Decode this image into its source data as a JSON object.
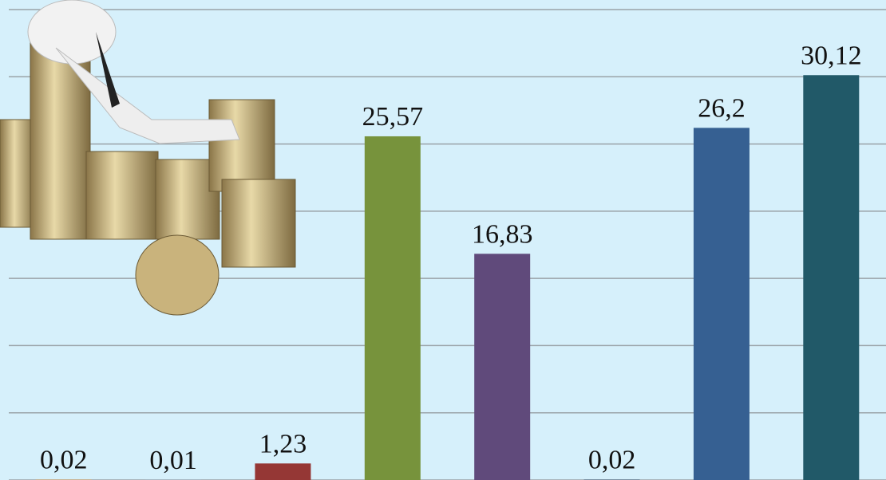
{
  "chart_data": {
    "type": "bar",
    "values": [
      0.02,
      0.01,
      1.23,
      25.57,
      16.83,
      0.02,
      26.2,
      30.12
    ],
    "value_labels": [
      "0,02",
      "0,01",
      "1,23",
      "25,57",
      "16,83",
      "0,02",
      "26,2",
      "30,12"
    ],
    "colors": [
      "#f79a38",
      "#95b3d7",
      "#953735",
      "#77933c",
      "#604a7b",
      "#17375e",
      "#366092",
      "#215968"
    ],
    "ylim": [
      0,
      35
    ],
    "yticks": [
      0,
      5,
      10,
      15,
      20,
      25,
      30,
      35
    ],
    "grid": true
  }
}
